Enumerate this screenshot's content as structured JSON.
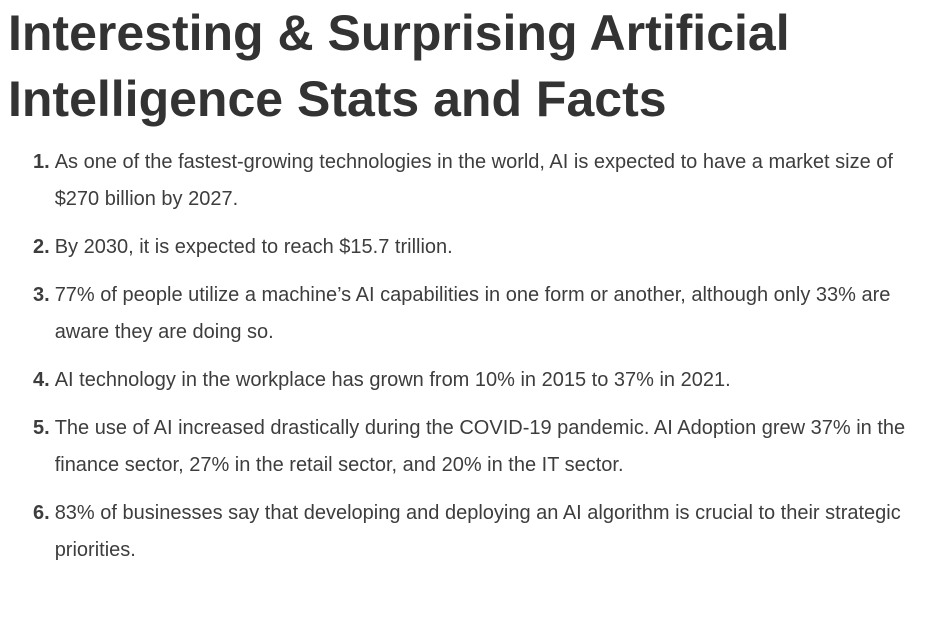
{
  "page": {
    "title": "Interesting & Surprising Artificial Intelligence Stats and Facts"
  },
  "colors": {
    "background": "#ffffff",
    "heading_text": "#333333",
    "body_text": "#3d3d3d"
  },
  "list": {
    "items": [
      {
        "number": "1.",
        "text": "As one of the fastest-growing technologies in the world, AI is expected to have a market size of $270 billion by 2027."
      },
      {
        "number": "2.",
        "text": "By 2030, it is expected to reach $15.7 trillion."
      },
      {
        "number": "3.",
        "text": "77% of people utilize a machine’s AI capabilities in one form or another, although only 33% are aware they are doing so."
      },
      {
        "number": "4.",
        "text": "AI technology in the workplace has grown from 10% in 2015 to 37% in 2021."
      },
      {
        "number": "5.",
        "text": "The use of AI increased drastically during the COVID-19 pandemic. AI Adoption grew 37% in the finance sector, 27% in the retail sector, and 20% in the IT sector."
      },
      {
        "number": "6.",
        "text": "83% of businesses say that developing and deploying an AI algorithm is crucial to their strategic priorities."
      }
    ]
  }
}
